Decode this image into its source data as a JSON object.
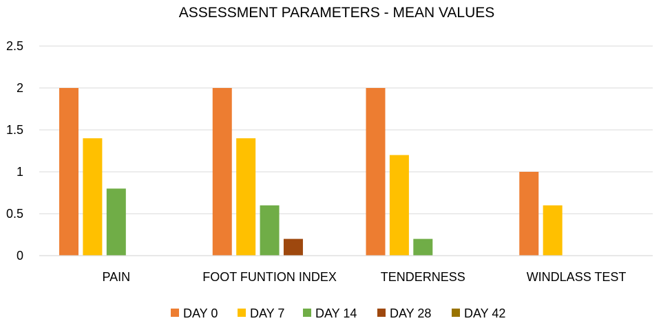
{
  "chart_data": {
    "type": "bar",
    "title": "ASSESSMENT PARAMETERS - MEAN VALUES",
    "xlabel": "",
    "ylabel": "",
    "ylim": [
      0,
      2.5
    ],
    "yticks": [
      "0",
      "0.5",
      "1",
      "1.5",
      "2",
      "2.5"
    ],
    "grid": true,
    "legend_position": "bottom",
    "categories": [
      "PAIN",
      "FOOT FUNTION INDEX",
      "TENDERNESS",
      "WINDLASS TEST"
    ],
    "series": [
      {
        "name": "DAY 0",
        "color": "#ED7D31",
        "values": [
          2,
          2,
          2,
          1
        ]
      },
      {
        "name": "DAY 7",
        "color": "#FFC000",
        "values": [
          1.4,
          1.4,
          1.2,
          0.6
        ]
      },
      {
        "name": "DAY 14",
        "color": "#70AD47",
        "values": [
          0.8,
          0.6,
          0.2,
          0
        ]
      },
      {
        "name": "DAY 28",
        "color": "#9E480E",
        "values": [
          0,
          0.2,
          0,
          0
        ]
      },
      {
        "name": "DAY 42",
        "color": "#997300",
        "values": [
          0,
          0,
          0,
          0
        ]
      }
    ]
  }
}
